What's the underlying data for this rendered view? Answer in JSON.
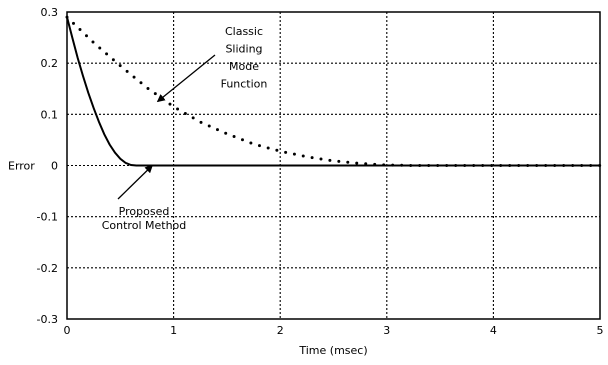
{
  "chart_data": {
    "type": "line",
    "title": "",
    "xlabel": "Time (msec)",
    "ylabel": "Error",
    "xlim": [
      0,
      5
    ],
    "ylim": [
      -0.3,
      0.3
    ],
    "x_ticks": [
      "0",
      "1",
      "2",
      "3",
      "4",
      "5"
    ],
    "y_ticks": [
      "0.3",
      "0.2",
      "0.1",
      "0",
      "-0.1",
      "-0.2",
      "-0.3"
    ],
    "grid": true,
    "series": [
      {
        "style": "solid",
        "x": [
          0,
          0.05,
          0.1,
          0.15,
          0.2,
          0.25,
          0.3,
          0.35,
          0.4,
          0.45,
          0.5,
          0.55,
          0.6,
          0.65,
          0.7,
          0.8,
          1.0,
          1.5,
          2.0,
          3.0,
          4.0,
          5.0
        ],
        "y": [
          0.29,
          0.25,
          0.21,
          0.175,
          0.142,
          0.112,
          0.085,
          0.061,
          0.041,
          0.025,
          0.013,
          0.005,
          0.001,
          0,
          0,
          0,
          0,
          0,
          0,
          0,
          0,
          0
        ]
      },
      {
        "style": "dotted",
        "x": [
          0,
          0.25,
          0.5,
          0.75,
          1.0,
          1.25,
          1.5,
          1.75,
          2.0,
          2.25,
          2.5,
          2.75,
          3.0,
          3.25,
          3.5,
          4.0,
          4.5,
          5.0
        ],
        "y": [
          0.29,
          0.24,
          0.195,
          0.152,
          0.115,
          0.085,
          0.062,
          0.042,
          0.028,
          0.017,
          0.009,
          0.004,
          0.001,
          0,
          0,
          0,
          0,
          0
        ]
      }
    ],
    "annotations": [
      {
        "lines": [
          "Classic",
          "Sliding",
          "Mode",
          "Function"
        ],
        "arrow_to": [
          0.85,
          0.125
        ]
      },
      {
        "lines": [
          "Proposed",
          "Control Method"
        ],
        "arrow_to": [
          0.8,
          0.0
        ]
      }
    ]
  }
}
